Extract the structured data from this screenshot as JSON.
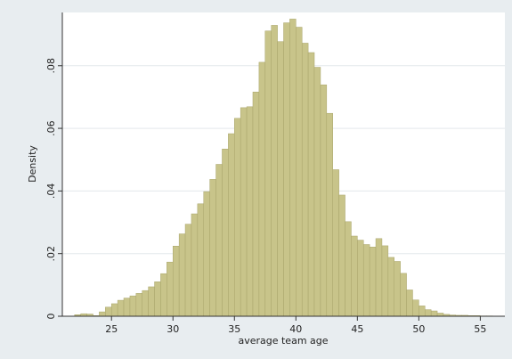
{
  "chart_data": {
    "type": "bar",
    "title": "",
    "xlabel": "average team age",
    "ylabel": "Density",
    "xlim": [
      21,
      57
    ],
    "ylim": [
      0,
      0.097
    ],
    "grid": true,
    "bar_color": "#c8c48a",
    "bar_edge_color": "#a8a46a",
    "background_color": "#e8edf0",
    "plot_background_color": "#ffffff",
    "grid_color": "#e3e8ec",
    "x_ticks": [
      25,
      30,
      35,
      40,
      45,
      50,
      55
    ],
    "x_tick_labels": [
      "25",
      "30",
      "35",
      "40",
      "45",
      "50",
      "55"
    ],
    "y_ticks": [
      0,
      0.02,
      0.04,
      0.06,
      0.08
    ],
    "y_tick_labels": [
      "0",
      ".02",
      ".04",
      ".06",
      ".08"
    ],
    "bin_width": 0.5,
    "bins_start": [
      22.0,
      22.5,
      23.0,
      23.5,
      24.0,
      24.5,
      25.0,
      25.5,
      26.0,
      26.5,
      27.0,
      27.5,
      28.0,
      28.5,
      29.0,
      29.5,
      30.0,
      30.5,
      31.0,
      31.5,
      32.0,
      32.5,
      33.0,
      33.5,
      34.0,
      34.5,
      35.0,
      35.5,
      36.0,
      36.5,
      37.0,
      37.5,
      38.0,
      38.5,
      39.0,
      39.5,
      40.0,
      40.5,
      41.0,
      41.5,
      42.0,
      42.5,
      43.0,
      43.5,
      44.0,
      44.5,
      45.0,
      45.5,
      46.0,
      46.5,
      47.0,
      47.5,
      48.0,
      48.5,
      49.0,
      49.5,
      50.0,
      50.5,
      51.0,
      51.5,
      52.0,
      52.5,
      53.0,
      53.5,
      54.0,
      54.5,
      55.0,
      55.5
    ],
    "values": [
      0.0005,
      0.0008,
      0.0007,
      0.0002,
      0.0014,
      0.0029,
      0.004,
      0.0051,
      0.0058,
      0.0065,
      0.0073,
      0.0082,
      0.0094,
      0.011,
      0.0136,
      0.0173,
      0.0224,
      0.0263,
      0.0294,
      0.0327,
      0.0359,
      0.0398,
      0.0437,
      0.0485,
      0.0534,
      0.0583,
      0.0632,
      0.0666,
      0.0669,
      0.0716,
      0.0811,
      0.0911,
      0.0929,
      0.0877,
      0.0937,
      0.0949,
      0.0923,
      0.0872,
      0.0842,
      0.0795,
      0.0739,
      0.0648,
      0.0468,
      0.0387,
      0.0302,
      0.0256,
      0.0243,
      0.0229,
      0.0221,
      0.0248,
      0.0225,
      0.0188,
      0.0175,
      0.0137,
      0.0084,
      0.0052,
      0.0033,
      0.0021,
      0.0017,
      0.001,
      0.0006,
      0.0004,
      0.0003,
      0.0003,
      0.0002,
      0.0002,
      0.0001,
      0.0001
    ]
  }
}
